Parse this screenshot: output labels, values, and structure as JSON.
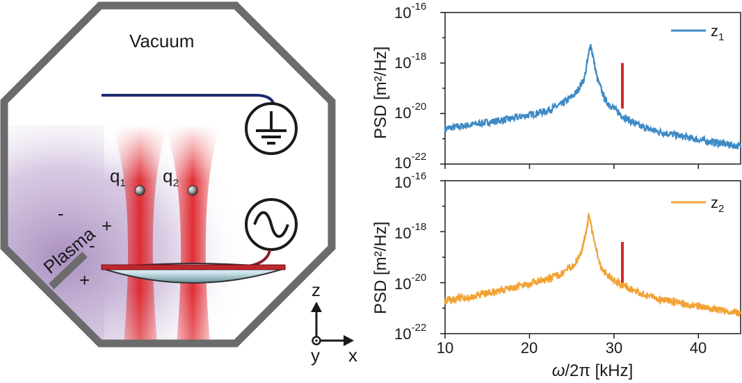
{
  "diagram": {
    "vacuum_label": "Vacuum",
    "plasma_label": "Plasma",
    "particle_1_label": "q",
    "particle_1_sub": "1",
    "particle_2_label": "q",
    "particle_2_sub": "2",
    "charge_minus": "-",
    "charge_plus": "+",
    "axis_z": "z",
    "axis_x": "x",
    "axis_y": "y",
    "colors": {
      "chamber": "#6b6b6b",
      "plasma": "#a98bbf",
      "laser": "#e0242a",
      "wire": "#1e2a6e",
      "drive_wire": "#8b1c2c"
    }
  },
  "panels": {
    "xlabel_main": "ω",
    "xlabel_rest": "/2π [kHz]",
    "ylabel": "PSD [m²/Hz]",
    "top_legend_main": "z",
    "top_legend_sub": "1",
    "bottom_legend_main": "z",
    "bottom_legend_sub": "2",
    "ytick_base": "10",
    "yticks_exp": [
      "-16",
      "-18",
      "-20",
      "-22"
    ],
    "xticks": [
      "10",
      "20",
      "30",
      "40"
    ]
  },
  "chart_data": [
    {
      "type": "line",
      "series_name": "z1",
      "color": "#3d8ac6",
      "xlabel": "ω/2π [kHz]",
      "ylabel": "PSD [m²/Hz]",
      "xlim": [
        10,
        45
      ],
      "ylim_log10": [
        -22,
        -16
      ],
      "x": [
        10,
        14,
        18,
        22,
        24,
        25.5,
        26.5,
        27,
        27.2,
        27.5,
        28,
        29,
        31,
        33,
        35,
        38,
        41,
        45
      ],
      "log10_y": [
        -20.6,
        -20.4,
        -20.2,
        -19.9,
        -19.6,
        -19.2,
        -18.6,
        -17.7,
        -17.2,
        -17.7,
        -18.6,
        -19.5,
        -20.1,
        -20.5,
        -20.7,
        -20.9,
        -21.1,
        -21.3
      ],
      "marker": {
        "x": 31,
        "log10_y_range": [
          -19.8,
          -18.0
        ],
        "color": "#d62728"
      }
    },
    {
      "type": "line",
      "series_name": "z2",
      "color": "#f2a233",
      "xlabel": "ω/2π [kHz]",
      "ylabel": "PSD [m²/Hz]",
      "xlim": [
        10,
        45
      ],
      "ylim_log10": [
        -22,
        -16
      ],
      "x": [
        10,
        14,
        18,
        22,
        24,
        25.5,
        26.3,
        26.8,
        27,
        27.3,
        27.8,
        28.5,
        30,
        31,
        33,
        35,
        38,
        41,
        45
      ],
      "log10_y": [
        -20.7,
        -20.5,
        -20.2,
        -19.9,
        -19.6,
        -19.2,
        -18.6,
        -17.8,
        -17.4,
        -17.8,
        -18.6,
        -19.4,
        -19.9,
        -20.1,
        -20.4,
        -20.6,
        -20.8,
        -21.0,
        -21.2
      ],
      "marker": {
        "x": 31,
        "log10_y_range": [
          -20.0,
          -18.4
        ],
        "color": "#d62728"
      }
    }
  ]
}
